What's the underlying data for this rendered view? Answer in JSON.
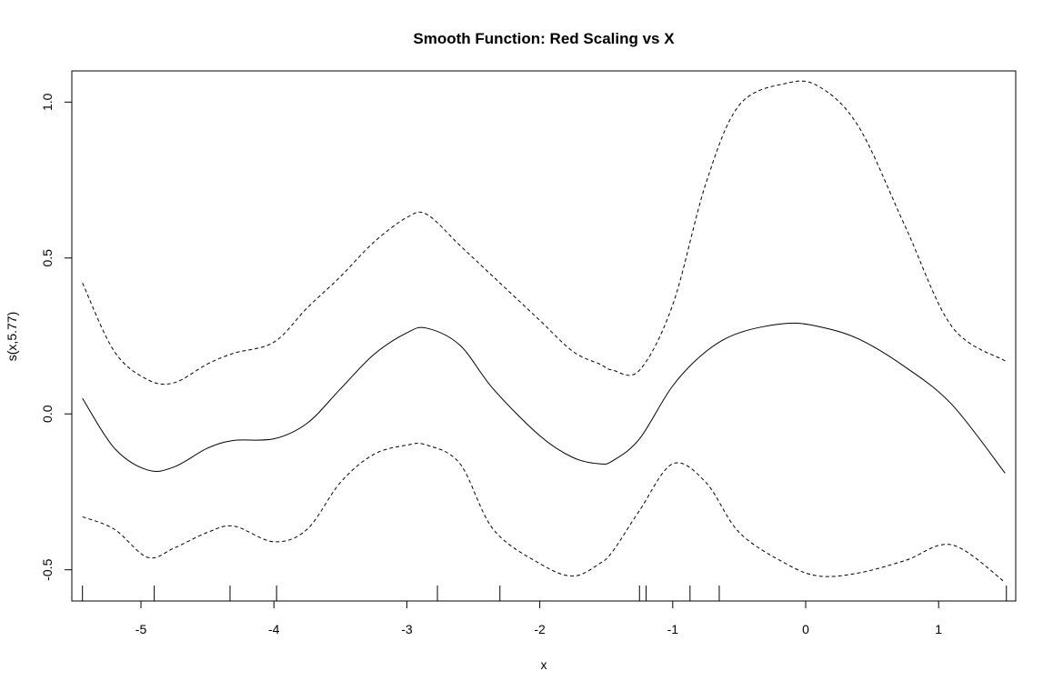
{
  "chart_data": {
    "type": "line",
    "title": "Smooth Function: Red Scaling vs X",
    "xlabel": "x",
    "ylabel": "s(x,5.77)",
    "xlim": [
      -5.52,
      1.58
    ],
    "ylim": [
      -0.6,
      1.1
    ],
    "x_ticks": [
      -5,
      -4,
      -3,
      -2,
      -1,
      0,
      1
    ],
    "x_tick_labels": [
      "-5",
      "-4",
      "-3",
      "-2",
      "-1",
      "0",
      "1"
    ],
    "y_ticks": [
      -0.5,
      0.0,
      0.5,
      1.0
    ],
    "y_tick_labels": [
      "-0.5",
      "0.0",
      "0.5",
      "1.0"
    ],
    "grid": false,
    "legend": "none",
    "x": [
      -5.44,
      -5.2,
      -4.95,
      -4.75,
      -4.5,
      -4.3,
      -4.0,
      -3.75,
      -3.5,
      -3.25,
      -3.0,
      -2.85,
      -2.6,
      -2.35,
      -2.0,
      -1.75,
      -1.55,
      -1.45,
      -1.25,
      -1.0,
      -0.75,
      -0.5,
      -0.15,
      0.1,
      0.4,
      0.75,
      1.1,
      1.5
    ],
    "series": [
      {
        "role": "estimate",
        "style": "solid",
        "values": [
          0.05,
          -0.11,
          -0.18,
          -0.17,
          -0.11,
          -0.085,
          -0.08,
          -0.03,
          0.08,
          0.19,
          0.26,
          0.275,
          0.22,
          0.08,
          -0.07,
          -0.14,
          -0.16,
          -0.15,
          -0.08,
          0.09,
          0.2,
          0.26,
          0.29,
          0.28,
          0.24,
          0.15,
          0.03,
          -0.19
        ]
      },
      {
        "role": "upper",
        "style": "dashed",
        "values": [
          0.42,
          0.2,
          0.11,
          0.1,
          0.16,
          0.195,
          0.23,
          0.34,
          0.44,
          0.55,
          0.63,
          0.64,
          0.54,
          0.44,
          0.3,
          0.2,
          0.16,
          0.14,
          0.14,
          0.35,
          0.74,
          0.99,
          1.06,
          1.05,
          0.92,
          0.6,
          0.28,
          0.17
        ]
      },
      {
        "role": "lower",
        "style": "dashed",
        "values": [
          -0.33,
          -0.37,
          -0.46,
          -0.43,
          -0.38,
          -0.36,
          -0.41,
          -0.37,
          -0.22,
          -0.13,
          -0.1,
          -0.1,
          -0.16,
          -0.37,
          -0.48,
          -0.52,
          -0.48,
          -0.44,
          -0.31,
          -0.16,
          -0.22,
          -0.38,
          -0.48,
          -0.52,
          -0.51,
          -0.47,
          -0.42,
          -0.54
        ]
      }
    ],
    "rug": [
      -5.44,
      -4.9,
      -4.33,
      -3.98,
      -2.77,
      -2.3,
      -1.25,
      -1.2,
      -0.87,
      -0.65,
      1.51
    ]
  }
}
